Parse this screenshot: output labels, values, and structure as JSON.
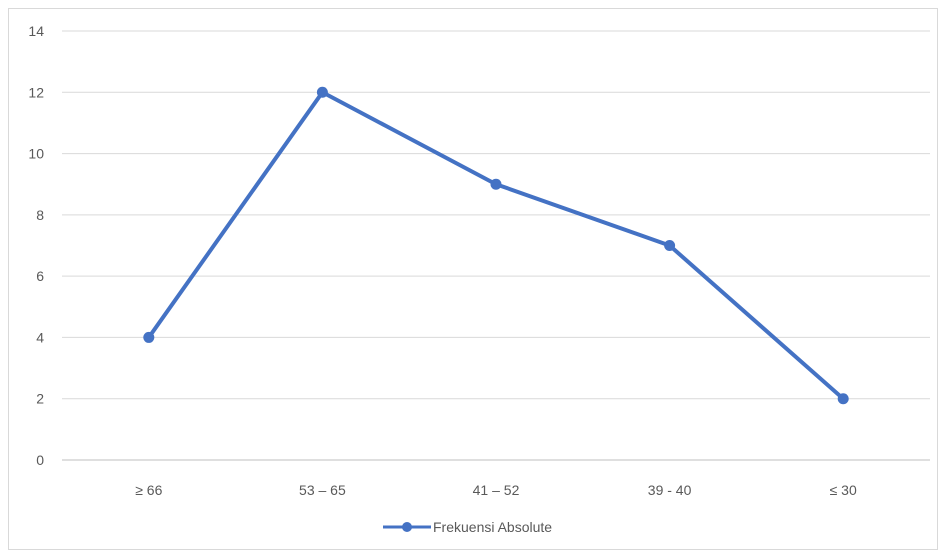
{
  "chart_data": {
    "type": "line",
    "categories": [
      "≥ 66",
      "53 – 65",
      "41 – 52",
      "39 - 40",
      "≤ 30"
    ],
    "series": [
      {
        "name": "Frekuensi Absolute",
        "values": [
          4,
          12,
          9,
          7,
          2
        ],
        "color": "#4472c4"
      }
    ],
    "ylim": [
      0,
      14
    ],
    "yticks": [
      "0",
      "2",
      "4",
      "6",
      "8",
      "10",
      "12",
      "14"
    ],
    "grid": true,
    "legend": "bottom"
  }
}
